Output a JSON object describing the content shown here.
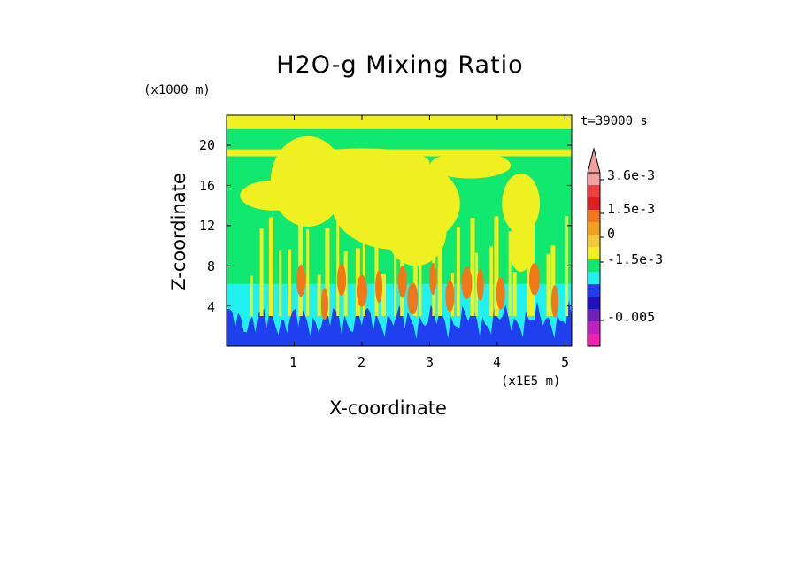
{
  "chart_data": {
    "type": "heatmap",
    "title": "H2O-g Mixing Ratio",
    "xlabel": "X-coordinate",
    "ylabel": "Z-coordinate",
    "x_unit": "(x1E5 m)",
    "y_unit": "(x1000 m)",
    "time_label": "t=39000 s",
    "xlim": [
      0,
      5.1
    ],
    "ylim": [
      0,
      23
    ],
    "x_ticks": [
      1,
      2,
      3,
      4,
      5
    ],
    "y_ticks": [
      4,
      8,
      12,
      16,
      20
    ],
    "x_tick_labels": [
      "1",
      "2",
      "3",
      "4",
      "5"
    ],
    "y_tick_labels": [
      "4",
      "8",
      "12",
      "16",
      "20"
    ],
    "colorbar": {
      "labels": [
        "3.6e-3",
        "1.5e-3",
        "0",
        "-1.5e-3",
        "-0.005"
      ],
      "colors": [
        "#f0a0a0",
        "#f04040",
        "#e02020",
        "#f07818",
        "#f0a020",
        "#f0c838",
        "#f0f020",
        "#10e870",
        "#20f0f0",
        "#2040f0",
        "#2010c0",
        "#7020b8",
        "#c020c0",
        "#f020b0"
      ]
    },
    "field_levels": [
      {
        "name": "background",
        "color": "#10e870",
        "approx_value": "0"
      },
      {
        "name": "upper_plumes",
        "color": "#f0f020",
        "approx_value": "positive small"
      },
      {
        "name": "low_dry_layer",
        "color": "#20f0f0",
        "approx_value": "negative"
      },
      {
        "name": "surface_layer",
        "color": "#2040f0",
        "approx_value": "-1.5e-3"
      },
      {
        "name": "convective_cores",
        "color": "#f07818",
        "approx_value": "1.5e-3"
      }
    ]
  }
}
